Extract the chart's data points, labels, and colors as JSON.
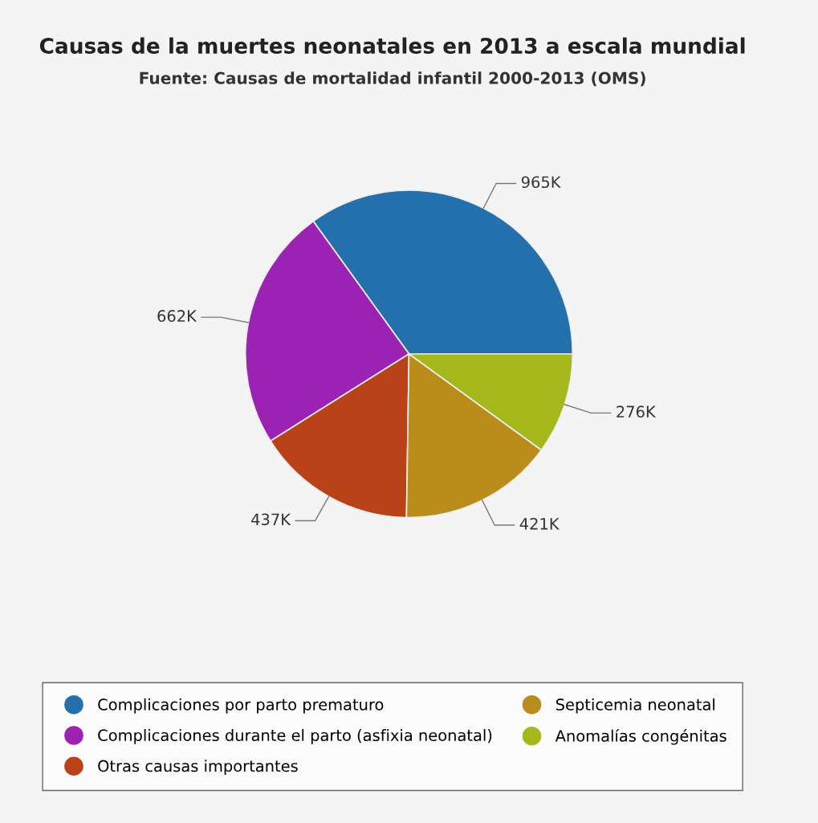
{
  "chart_data": {
    "type": "pie",
    "title": "Causas de la muertes neonatales en 2013 a escala mundial",
    "subtitle": "Fuente: Causas de mortalidad infantil 2000-2013 (OMS)",
    "categories": [
      "Complicaciones por parto prematuro",
      "Complicaciones durante el parto (asfixia neonatal)",
      "Otras causas importantes",
      "Septicemia neonatal",
      "Anomalías congénitas"
    ],
    "values": [
      965,
      662,
      437,
      421,
      276
    ],
    "value_labels": [
      "965K",
      "662K",
      "437K",
      "421K",
      "276K"
    ],
    "colors": [
      "#2470ad",
      "#9b22b3",
      "#b94219",
      "#b98c1b",
      "#a5b81b"
    ],
    "legend": "bottom"
  }
}
